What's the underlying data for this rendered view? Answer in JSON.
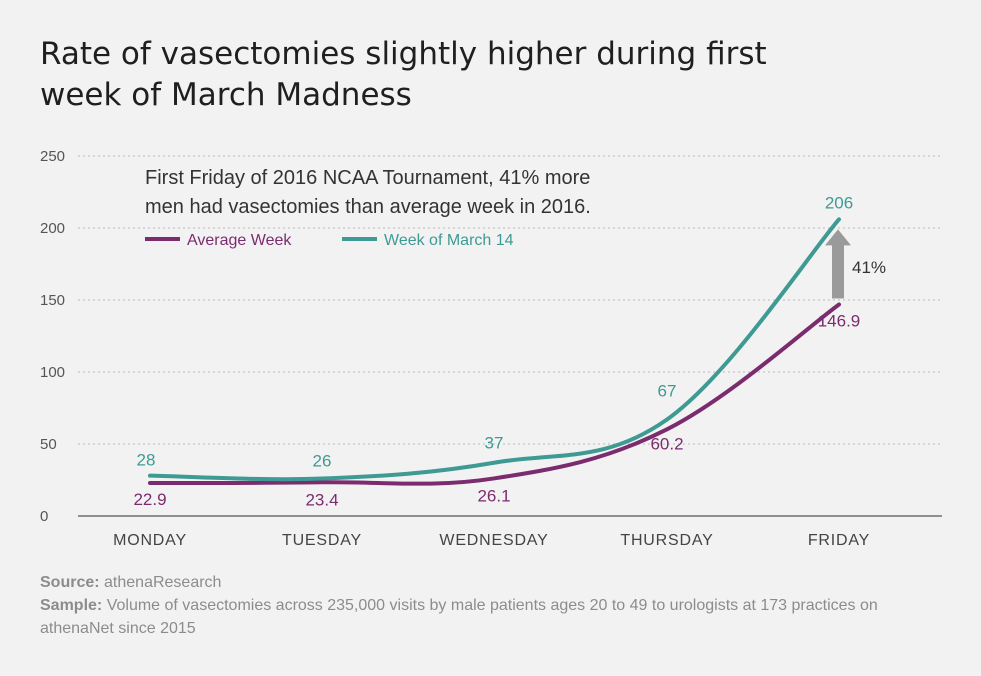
{
  "title": "Rate of vasectomies slightly higher during first week of March Madness",
  "annotation": {
    "line1": "First Friday of 2016 NCAA Tournament, 41% more",
    "line2": "men had vasectomies than average week in 2016.",
    "arrow_label": "41%"
  },
  "colors": {
    "average": "#7b2c6e",
    "march": "#3f9a94",
    "arrow": "#9a9a9a",
    "grid": "#b9b9b9",
    "axis_text": "#555555"
  },
  "chart_data": {
    "type": "line",
    "categories": [
      "MONDAY",
      "TUESDAY",
      "WEDNESDAY",
      "THURSDAY",
      "FRIDAY"
    ],
    "ylim": [
      0,
      250
    ],
    "yticks": [
      0,
      50,
      100,
      150,
      200,
      250
    ],
    "grid": true,
    "legend_position": "top-left",
    "series": [
      {
        "name": "Average Week",
        "key": "average",
        "values": [
          22.9,
          23.4,
          26.1,
          60.2,
          146.9
        ],
        "labels": [
          "22.9",
          "23.4",
          "26.1",
          "60.2",
          "146.9"
        ]
      },
      {
        "name": "Week of March 14",
        "key": "march",
        "values": [
          28,
          26,
          37,
          67,
          206
        ],
        "labels": [
          "28",
          "26",
          "37",
          "67",
          "206"
        ]
      }
    ]
  },
  "footer": {
    "source_label": "Source:",
    "source_text": " athenaResearch",
    "sample_label": "Sample:",
    "sample_text": " Volume of vasectomies across 235,000 visits by male patients ages 20 to 49 to urologists at 173 practices on athenaNet since 2015"
  }
}
